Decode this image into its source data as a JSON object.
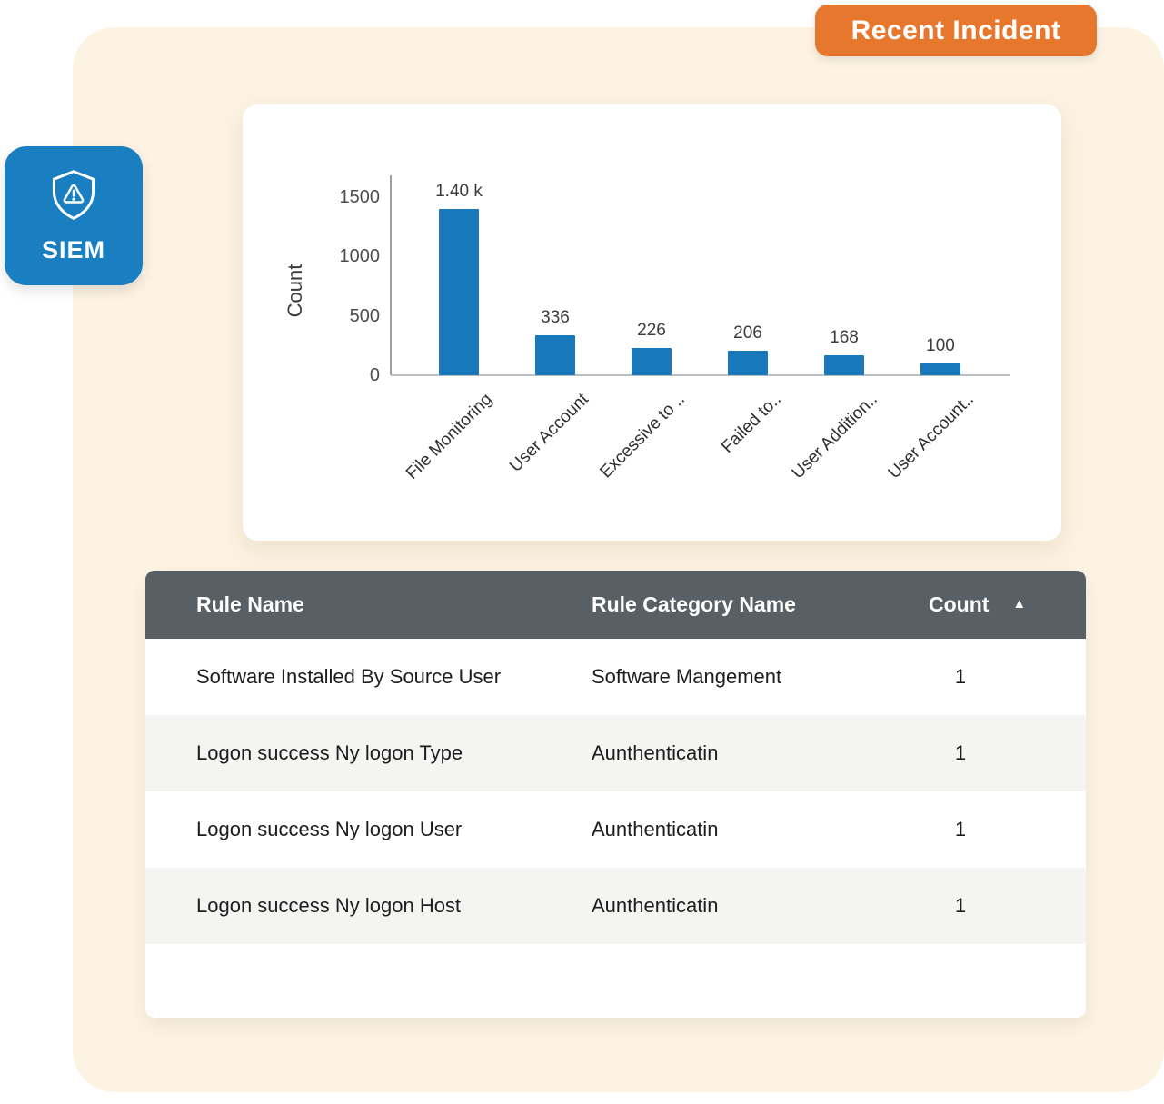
{
  "badge": {
    "label": "Recent Incident",
    "bg": "#e8772e"
  },
  "siem": {
    "label": "SIEM",
    "bg": "#1a7fc1"
  },
  "chart_data": {
    "type": "bar",
    "categories": [
      "File Monitoring",
      "User Account",
      "Excessive to ..",
      "Failed to..",
      "User Addition..",
      "User Account.."
    ],
    "values": [
      1400,
      336,
      226,
      206,
      168,
      100
    ],
    "value_labels": [
      "1.40 k",
      "336",
      "226",
      "206",
      "168",
      "100"
    ],
    "title": "",
    "xlabel": "",
    "ylabel": "Count",
    "yticks": [
      1500,
      1000,
      500,
      0
    ],
    "ylim": [
      0,
      1500
    ],
    "grid": false,
    "legend": false,
    "bar_color": "#1878bb"
  },
  "table": {
    "header_bg": "#596065",
    "headers": [
      "Rule Name",
      "Rule Category Name",
      "Count"
    ],
    "sort_icon": "▲",
    "rows": [
      {
        "rule_name": "Software Installed By Source User",
        "category": "Software Mangement",
        "count": "1"
      },
      {
        "rule_name": "Logon success Ny logon Type",
        "category": "Aunthenticatin",
        "count": "1"
      },
      {
        "rule_name": "Logon success Ny logon User",
        "category": "Aunthenticatin",
        "count": "1"
      },
      {
        "rule_name": "Logon success Ny logon Host",
        "category": "Aunthenticatin",
        "count": "1"
      }
    ]
  }
}
